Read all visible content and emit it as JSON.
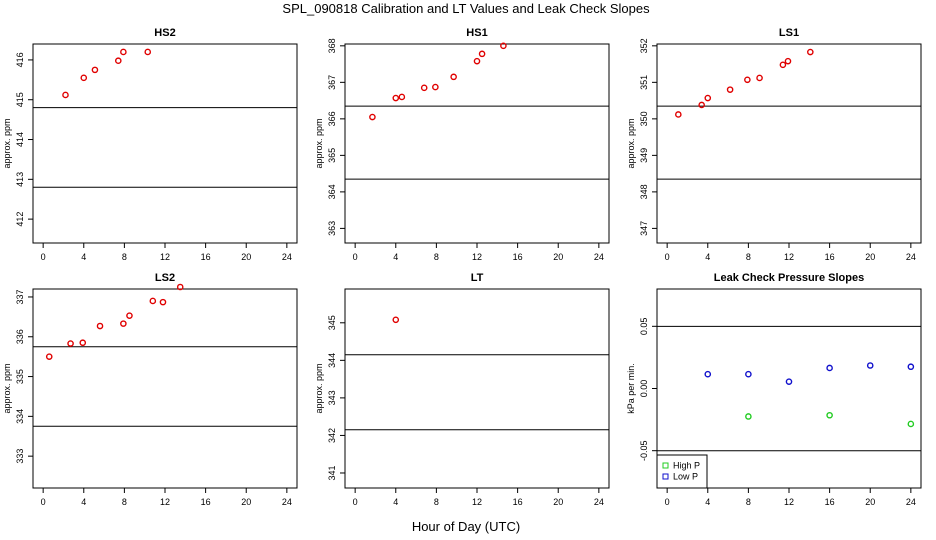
{
  "figure": {
    "title": "SPL_090818  Calibration and LT Values and Leak Check Slopes",
    "xlabel": "Hour of Day (UTC)"
  },
  "chart_data": [
    {
      "id": "hs2",
      "type": "scatter",
      "title": "HS2",
      "xlabel": "",
      "ylabel": "approx. ppm",
      "xlim": [
        -1,
        25
      ],
      "ylim": [
        411.4,
        416.4
      ],
      "xticks": [
        0,
        4,
        8,
        12,
        16,
        20,
        24
      ],
      "yticks": [
        412,
        413,
        414,
        415,
        416
      ],
      "hlines": [
        414.8,
        412.8
      ],
      "series": [
        {
          "name": "HS2",
          "color": "#e00000",
          "x": [
            2.2,
            4.0,
            5.1,
            7.4,
            7.9,
            10.3
          ],
          "y": [
            415.12,
            415.55,
            415.75,
            415.98,
            416.2,
            416.2
          ]
        }
      ]
    },
    {
      "id": "hs1",
      "type": "scatter",
      "title": "HS1",
      "xlabel": "",
      "ylabel": "approx. ppm",
      "xlim": [
        -1,
        25
      ],
      "ylim": [
        362.6,
        368.05
      ],
      "xticks": [
        0,
        4,
        8,
        12,
        16,
        20,
        24
      ],
      "yticks": [
        363,
        364,
        365,
        366,
        367,
        368
      ],
      "hlines": [
        366.35,
        364.35
      ],
      "series": [
        {
          "name": "HS1",
          "color": "#e00000",
          "x": [
            1.7,
            4.0,
            4.6,
            6.8,
            7.9,
            9.7,
            12.0,
            12.5,
            14.6
          ],
          "y": [
            366.05,
            366.57,
            366.6,
            366.85,
            366.87,
            367.15,
            367.58,
            367.78,
            368.0
          ]
        }
      ]
    },
    {
      "id": "ls1",
      "type": "scatter",
      "title": "LS1",
      "xlabel": "",
      "ylabel": "approx. ppm",
      "xlim": [
        -1,
        25
      ],
      "ylim": [
        346.6,
        352.05
      ],
      "xticks": [
        0,
        4,
        8,
        12,
        16,
        20,
        24
      ],
      "yticks": [
        347,
        348,
        349,
        350,
        351,
        352
      ],
      "hlines": [
        350.35,
        348.35
      ],
      "series": [
        {
          "name": "LS1",
          "color": "#e00000",
          "x": [
            1.1,
            3.4,
            4.0,
            6.2,
            7.9,
            9.1,
            11.4,
            11.9,
            14.1
          ],
          "y": [
            350.12,
            350.38,
            350.57,
            350.8,
            351.07,
            351.12,
            351.48,
            351.58,
            351.83
          ]
        }
      ]
    },
    {
      "id": "ls2",
      "type": "scatter",
      "title": "LS2",
      "xlabel": "",
      "ylabel": "approx. ppm",
      "xlim": [
        -1,
        25
      ],
      "ylim": [
        332.2,
        337.2
      ],
      "xticks": [
        0,
        4,
        8,
        12,
        16,
        20,
        24
      ],
      "yticks": [
        333,
        334,
        335,
        336,
        337
      ],
      "hlines": [
        335.75,
        333.75
      ],
      "series": [
        {
          "name": "LS2",
          "color": "#e00000",
          "x": [
            0.6,
            2.7,
            3.9,
            5.6,
            7.9,
            8.5,
            10.8,
            11.8,
            13.5
          ],
          "y": [
            335.5,
            335.83,
            335.85,
            336.27,
            336.33,
            336.53,
            336.9,
            336.87,
            337.25
          ]
        }
      ]
    },
    {
      "id": "lt",
      "type": "scatter",
      "title": "LT",
      "xlabel": "",
      "ylabel": "approx. ppm",
      "xlim": [
        -1,
        25
      ],
      "ylim": [
        340.6,
        345.9
      ],
      "xticks": [
        0,
        4,
        8,
        12,
        16,
        20,
        24
      ],
      "yticks": [
        341,
        342,
        343,
        344,
        345
      ],
      "hlines": [
        344.15,
        342.15
      ],
      "series": [
        {
          "name": "LT",
          "color": "#e00000",
          "x": [
            4.0
          ],
          "y": [
            345.08
          ]
        }
      ]
    },
    {
      "id": "leak",
      "type": "scatter",
      "title": "Leak Check Pressure Slopes",
      "xlabel": "",
      "ylabel": "kPa per min.",
      "xlim": [
        -1,
        25
      ],
      "ylim": [
        -0.08,
        0.08
      ],
      "xticks": [
        0,
        4,
        8,
        12,
        16,
        20,
        24
      ],
      "yticks": [
        -0.05,
        0.0,
        0.05
      ],
      "ytick_labels": [
        "-0.05",
        "0.00",
        "0.05"
      ],
      "hlines": [
        0.05,
        -0.05
      ],
      "legend": {
        "position": "bottom-left",
        "entries": [
          "High P",
          "Low P"
        ]
      },
      "series": [
        {
          "name": "High P",
          "color": "#22cc22",
          "x": [
            8,
            16,
            24
          ],
          "y": [
            -0.0225,
            -0.0215,
            -0.0285
          ]
        },
        {
          "name": "Low P",
          "color": "#1010cc",
          "x": [
            4,
            8,
            12,
            16,
            20,
            24
          ],
          "y": [
            0.0115,
            0.0115,
            0.0055,
            0.0165,
            0.0185,
            0.0175
          ]
        }
      ]
    }
  ]
}
